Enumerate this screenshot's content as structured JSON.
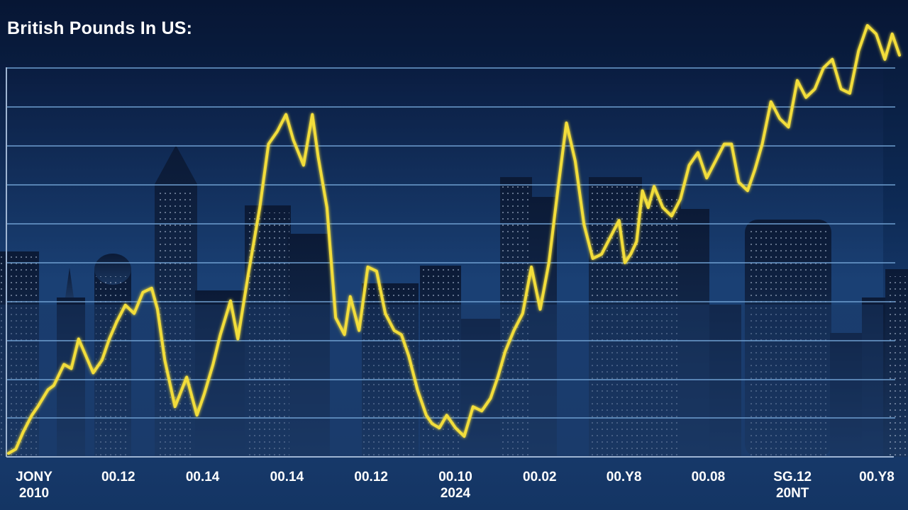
{
  "chart_data": {
    "type": "line",
    "title": "British Pounds In US:",
    "xlabel": "",
    "ylabel": "",
    "ylim": [
      0,
      100
    ],
    "grid": true,
    "legend": "none",
    "x_tick_labels": [
      {
        "line1": "JONY",
        "line2": "2010"
      },
      {
        "line1": "00.12",
        "line2": ""
      },
      {
        "line1": "00.14",
        "line2": ""
      },
      {
        "line1": "00.14",
        "line2": ""
      },
      {
        "line1": "00.12",
        "line2": ""
      },
      {
        "line1": "00.10",
        "line2": "2024"
      },
      {
        "line1": "00.02",
        "line2": ""
      },
      {
        "line1": "00.Y8",
        "line2": ""
      },
      {
        "line1": "00.08",
        "line2": ""
      },
      {
        "line1": "SG.12",
        "line2": "20NT"
      },
      {
        "line1": "00.Y8",
        "line2": ""
      }
    ],
    "x": [
      0,
      0.25,
      0.5,
      0.8,
      1.0,
      1.35,
      1.55,
      1.9,
      2.15,
      2.4,
      2.9,
      3.2,
      3.45,
      3.7,
      4.0,
      4.3,
      4.6,
      4.9,
      5.1,
      5.35,
      5.7,
      6.1,
      6.45,
      6.7,
      7.0,
      7.25,
      7.6,
      7.85,
      8.2,
      8.6,
      8.9,
      9.2,
      9.5,
      9.75,
      10.1,
      10.4,
      10.6,
      10.9,
      11.2,
      11.5,
      11.7,
      12.0,
      12.3,
      12.6,
      12.9,
      13.2,
      13.45,
      13.7,
      14.0,
      14.3,
      14.5,
      14.75,
      15.0,
      15.3,
      15.6,
      15.9,
      16.2,
      16.5,
      16.75,
      17.0,
      17.3,
      17.6,
      17.9,
      18.2,
      18.5,
      18.8,
      19.1,
      19.4,
      19.7,
      20.0,
      20.3,
      20.6,
      20.9,
      21.1,
      21.3,
      21.5,
      21.7,
      21.9,
      22.1,
      22.4,
      22.7,
      23.0,
      23.3,
      23.6,
      23.9,
      24.2,
      24.5,
      24.75,
      25.0,
      25.3,
      25.55,
      25.8,
      26.1,
      26.4,
      26.7,
      27.0,
      27.3,
      27.6,
      27.9,
      28.2,
      28.5,
      28.8,
      29.1,
      29.4,
      29.7,
      30.0,
      30.25,
      30.5
    ],
    "values": [
      0,
      1,
      5,
      9,
      11,
      15,
      16,
      21,
      20,
      27,
      19,
      22,
      27,
      31,
      35,
      33,
      38,
      39,
      34,
      22,
      11,
      18,
      9,
      14,
      21,
      28,
      36,
      27,
      42,
      58,
      73,
      76,
      80,
      74,
      68,
      80,
      70,
      58,
      32,
      28,
      37,
      29,
      44,
      43,
      33,
      29,
      28,
      23,
      15,
      9,
      7,
      6,
      9,
      6,
      4,
      11,
      10,
      13,
      18,
      24,
      29,
      33,
      44,
      34,
      45,
      62,
      78,
      69,
      54,
      46,
      47,
      51,
      55,
      45,
      47,
      50,
      62,
      58,
      63,
      58,
      56,
      60,
      68,
      71,
      65,
      69,
      73,
      73,
      64,
      62,
      67,
      73,
      83,
      79,
      77,
      88,
      84,
      86,
      91,
      93,
      86,
      85,
      95,
      101,
      99,
      93,
      99,
      94
    ]
  }
}
